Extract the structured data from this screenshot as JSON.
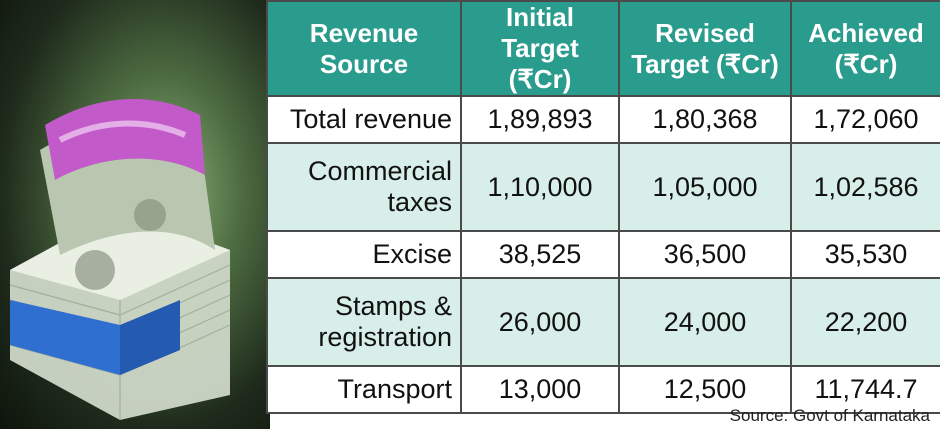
{
  "chart_data": {
    "type": "table",
    "columns": [
      "Revenue Source",
      "Initial Target (₹Cr)",
      "Revised Target (₹Cr)",
      "Achieved (₹Cr)"
    ],
    "header_lines": [
      [
        "Revenue",
        "Source"
      ],
      [
        "Initial",
        "Target (₹Cr)"
      ],
      [
        "Revised",
        "Target (₹Cr)"
      ],
      [
        "Achieved",
        "(₹Cr)"
      ]
    ],
    "rows": [
      {
        "source_lines": [
          "Total revenue"
        ],
        "initial": "1,89,893",
        "revised": "1,80,368",
        "achieved": "1,72,060"
      },
      {
        "source_lines": [
          "Commercial",
          "taxes"
        ],
        "initial": "1,10,000",
        "revised": "1,05,000",
        "achieved": "1,02,586"
      },
      {
        "source_lines": [
          "Excise"
        ],
        "initial": "38,525",
        "revised": "36,500",
        "achieved": "35,530"
      },
      {
        "source_lines": [
          "Stamps &",
          "registration"
        ],
        "initial": "26,000",
        "revised": "24,000",
        "achieved": "22,200"
      },
      {
        "source_lines": [
          "Transport"
        ],
        "initial": "13,000",
        "revised": "12,500",
        "achieved": "11,744.7"
      }
    ],
    "source_note": "Source: Govt of Karnataka",
    "colors": {
      "header": "#2a9c8d",
      "stripe": "#d7eee9",
      "border": "#4a4a4a"
    }
  },
  "illustration": {
    "icon": "currency-notes-bundle-icon"
  }
}
